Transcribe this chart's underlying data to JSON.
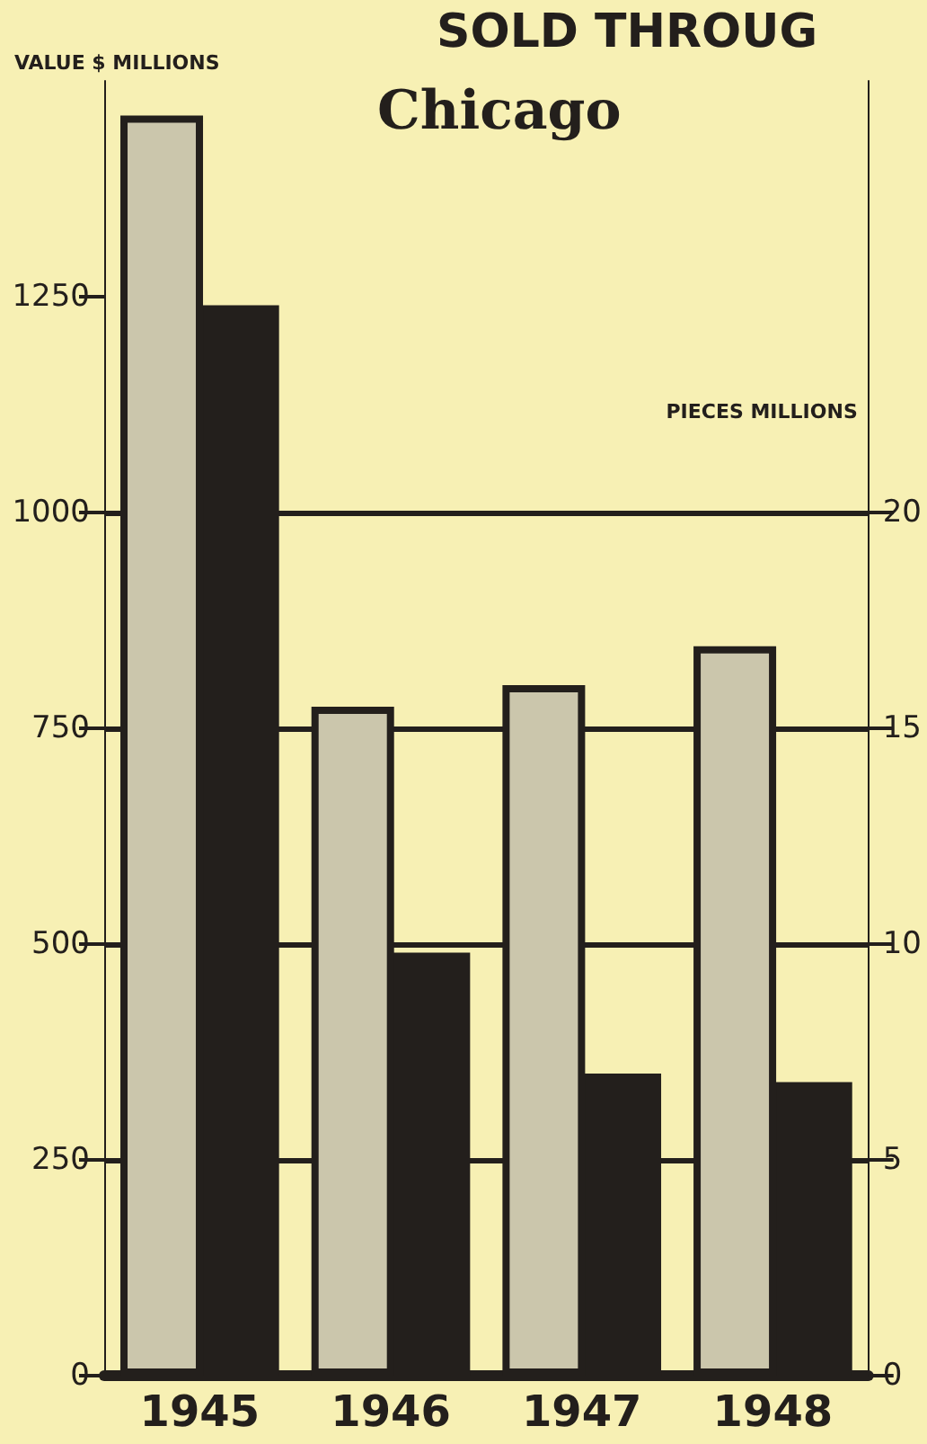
{
  "chart_data": {
    "type": "bar",
    "title": "SOLD THROUG",
    "subtitle": "Chicago",
    "ylabel": "VALUE $ MILLIONS",
    "y2label": "PIECES MILLIONS",
    "categories": [
      "1945",
      "1946",
      "1947",
      "1948"
    ],
    "series": [
      {
        "color": "#cbc6ac",
        "values": [
          1460,
          775,
          800,
          845
        ]
      },
      {
        "color": "#231f1c",
        "axis": "y2",
        "values": [
          24.8,
          9.8,
          7.0,
          6.8
        ]
      }
    ],
    "ylim": [
      0,
      1500
    ],
    "yticks": [
      0,
      250,
      500,
      750,
      1000,
      1250
    ],
    "y2lim": [
      0,
      30
    ],
    "y2ticks": [
      0,
      5,
      10,
      15,
      20
    ],
    "grid": "y"
  }
}
